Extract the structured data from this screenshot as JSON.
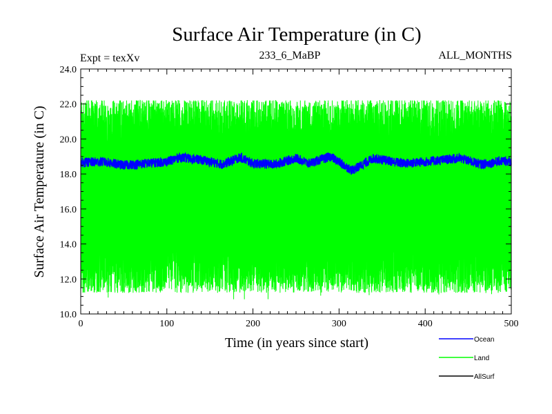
{
  "chart_data": {
    "type": "line",
    "title": "Surface Air Temperature (in C)",
    "subtitle_left": "Expt = texXv",
    "subtitle_center": "233_6_MaBP",
    "subtitle_right": "ALL_MONTHS",
    "xlabel": "Time (in years since start)",
    "ylabel": "Surface Air Temperature (in C)",
    "xlim": [
      0,
      500
    ],
    "ylim": [
      10,
      24
    ],
    "x_ticks": [
      0,
      100,
      200,
      300,
      400,
      500
    ],
    "x_tick_labels": [
      "0",
      "100",
      "200",
      "300",
      "400",
      "500"
    ],
    "y_ticks": [
      10,
      12,
      14,
      16,
      18,
      20,
      22,
      24
    ],
    "y_tick_labels": [
      "10.0",
      "12.0",
      "14.0",
      "16.0",
      "18.0",
      "20.0",
      "22.0",
      "24.0"
    ],
    "legend_position": "bottom-right",
    "colors": {
      "ocean": "#0000ff",
      "land": "#00ff00",
      "allsurf": "#000000"
    },
    "series": [
      {
        "name": "Land",
        "color": "#00ff00",
        "description": "monthly values oscillating seasonally",
        "mean": 16.5,
        "min": 10.8,
        "max": 22.2,
        "seasonal_low": 12.5,
        "seasonal_high": 21.0
      },
      {
        "name": "Ocean",
        "color": "#0000ff",
        "mean": 18.7,
        "min": 17.7,
        "max": 19.3,
        "x": [
          0,
          25,
          50,
          75,
          100,
          115,
          140,
          165,
          185,
          200,
          225,
          250,
          265,
          290,
          315,
          340,
          375,
          400,
          440,
          465,
          490,
          500
        ],
        "values": [
          18.65,
          18.7,
          18.5,
          18.6,
          18.7,
          18.95,
          18.8,
          18.55,
          18.95,
          18.6,
          18.55,
          18.9,
          18.6,
          19.0,
          18.2,
          18.9,
          18.6,
          18.7,
          18.9,
          18.55,
          18.75,
          18.7
        ]
      },
      {
        "name": "AllSurf",
        "color": "#000000",
        "note": "legend entry only; no visible line"
      }
    ],
    "legend": [
      "Ocean",
      "Land",
      "AllSurf"
    ]
  }
}
